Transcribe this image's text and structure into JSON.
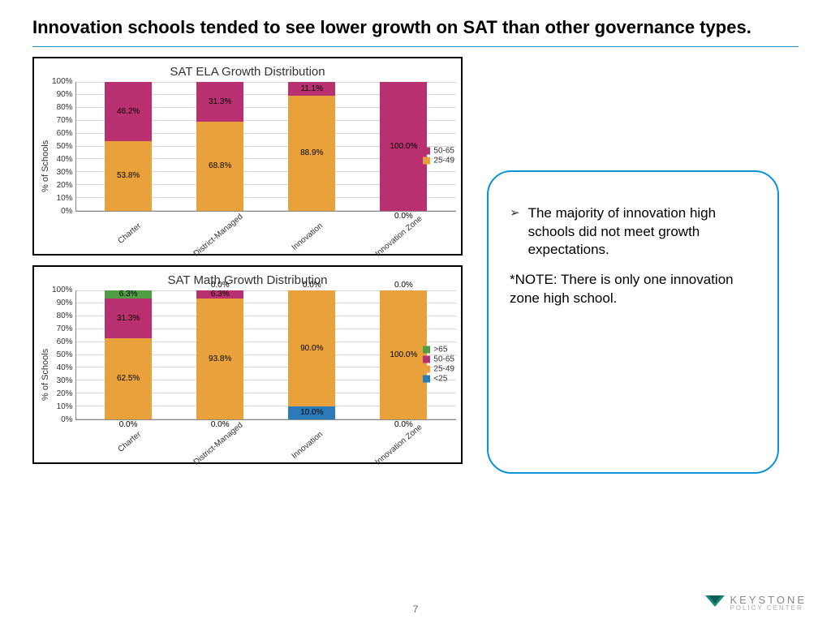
{
  "page": {
    "title": "Innovation schools tended to see lower growth on SAT than other governance types.",
    "page_number": "7",
    "rule_color": "#1f8fc6"
  },
  "colors": {
    "range_gt65": "#4f9e44",
    "range_50_65": "#b8306f",
    "range_25_49": "#e9a23b",
    "range_lt25": "#2b7bba",
    "grid": "#d9d9d9",
    "border": "#000000"
  },
  "chart1": {
    "title": "SAT ELA Growth Distribution",
    "type": "stacked-bar",
    "y_label": "% of Schools",
    "y_ticks": [
      "100%",
      "90%",
      "80%",
      "70%",
      "60%",
      "50%",
      "40%",
      "30%",
      "20%",
      "10%",
      "0%"
    ],
    "categories": [
      "Charter",
      "District-Managed",
      "Innovation",
      "Innovation Zone"
    ],
    "series": [
      {
        "name": "50-65",
        "color": "#b8306f"
      },
      {
        "name": "25-49",
        "color": "#e9a23b"
      }
    ],
    "data": {
      "Charter": {
        "50-65": 46.2,
        "25-49": 53.8
      },
      "District-Managed": {
        "50-65": 31.3,
        "25-49": 68.8
      },
      "Innovation": {
        "50-65": 11.1,
        "25-49": 88.9
      },
      "Innovation Zone": {
        "50-65": 100.0,
        "25-49": 0.0
      }
    },
    "legend": [
      {
        "label": "50-65",
        "color": "#b8306f"
      },
      {
        "label": "25-49",
        "color": "#e9a23b"
      }
    ]
  },
  "chart2": {
    "title": "SAT Math Growth Distribution",
    "type": "stacked-bar",
    "y_label": "% of Schools",
    "y_ticks": [
      "100%",
      "90%",
      "80%",
      "70%",
      "60%",
      "50%",
      "40%",
      "30%",
      "20%",
      "10%",
      "0%"
    ],
    "categories": [
      "Charter",
      "District-Managed",
      "Innovation",
      "Innovation Zone"
    ],
    "series": [
      {
        "name": ">65",
        "color": "#4f9e44"
      },
      {
        "name": "50-65",
        "color": "#b8306f"
      },
      {
        "name": "25-49",
        "color": "#e9a23b"
      },
      {
        "name": "<25",
        "color": "#2b7bba"
      }
    ],
    "data": {
      "Charter": {
        ">65": 6.3,
        "50-65": 31.3,
        "25-49": 62.5,
        "<25": 0.0
      },
      "District-Managed": {
        ">65": 0.0,
        "50-65": 6.3,
        "25-49": 93.8,
        "<25": 0.0
      },
      "Innovation": {
        ">65": 0.0,
        "50-65": 0.0,
        "25-49": 90.0,
        "<25": 10.0
      },
      "Innovation Zone": {
        ">65": 0.0,
        "50-65": 0.0,
        "25-49": 100.0,
        "<25": 0.0
      }
    },
    "legend": [
      {
        "label": ">65",
        "color": "#4f9e44"
      },
      {
        "label": "50-65",
        "color": "#b8306f"
      },
      {
        "label": "25-49",
        "color": "#e9a23b"
      },
      {
        "label": "<25",
        "color": "#2b7bba"
      }
    ]
  },
  "callout": {
    "border_color": "#0a94d6",
    "bullet": "The majority of innovation high schools did not meet growth expectations.",
    "note": "*NOTE: There is only one innovation zone high school."
  },
  "logo": {
    "name": "KEYSTONE",
    "sub": "POLICY CENTER"
  }
}
